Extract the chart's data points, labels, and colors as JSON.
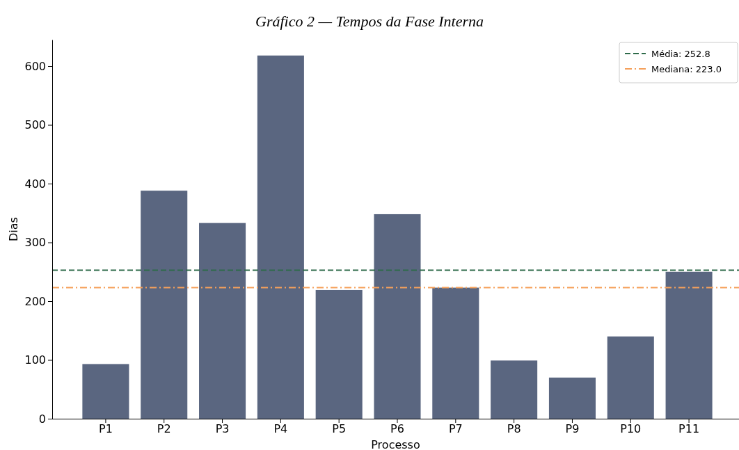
{
  "chart_data": {
    "type": "bar",
    "title": "Gráfico 2 — Tempos da Fase Interna",
    "xlabel": "Processo",
    "ylabel": "Dias",
    "categories": [
      "P1",
      "P2",
      "P3",
      "P4",
      "P5",
      "P6",
      "P7",
      "P8",
      "P9",
      "P10",
      "P11"
    ],
    "values": [
      93,
      388,
      333,
      618,
      219,
      348,
      223,
      99,
      70,
      140,
      250
    ],
    "color": "#5a6680",
    "ylim": [
      0,
      645
    ],
    "yticks": [
      0,
      100,
      200,
      300,
      400,
      500,
      600
    ],
    "grid": false,
    "legend": "top right",
    "ref_lines": [
      {
        "axis": "y",
        "value": 252.8,
        "label": "Média: 252.8",
        "color": "#2e6b4a",
        "line_style": "dashed"
      },
      {
        "axis": "y",
        "value": 223.0,
        "label": "Mediana: 223.0",
        "color": "#f5a05a",
        "line_style": "dashdot"
      }
    ]
  }
}
